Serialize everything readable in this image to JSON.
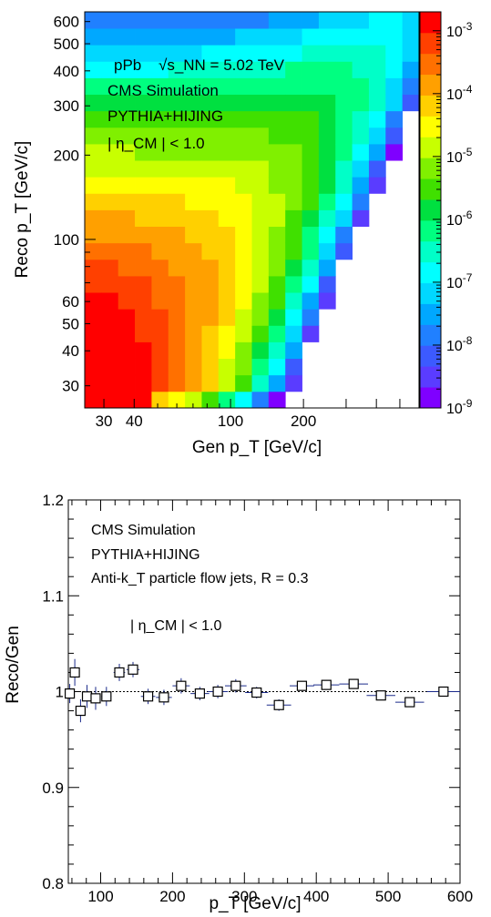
{
  "chart_data": [
    {
      "type": "heatmap",
      "xlabel": "Gen p_T [GeV/c]",
      "ylabel": "Reco p_T [GeV/c]",
      "xscale": "log",
      "yscale": "log",
      "xlim": [
        25,
        600
      ],
      "ylim": [
        25,
        650
      ],
      "x_ticks": [
        {
          "value": 30,
          "label": "30"
        },
        {
          "value": 40,
          "label": "40"
        },
        {
          "value": 100,
          "label": "100"
        },
        {
          "value": 200,
          "label": "200"
        }
      ],
      "y_ticks": [
        {
          "value": 30,
          "label": "30"
        },
        {
          "value": 40,
          "label": "40"
        },
        {
          "value": 50,
          "label": "50"
        },
        {
          "value": 60,
          "label": "60"
        },
        {
          "value": 100,
          "label": "100"
        },
        {
          "value": 200,
          "label": "200"
        },
        {
          "value": 300,
          "label": "300"
        },
        {
          "value": 400,
          "label": "400"
        },
        {
          "value": 500,
          "label": "500"
        },
        {
          "value": 600,
          "label": "600"
        }
      ],
      "colorbar": {
        "scale": "log",
        "range": [
          1e-09,
          0.002
        ],
        "ticks": [
          {
            "base": "10",
            "exp": "-3",
            "value": 0.001
          },
          {
            "base": "10",
            "exp": "-4",
            "value": 0.0001
          },
          {
            "base": "10",
            "exp": "-5",
            "value": 1e-05
          },
          {
            "base": "10",
            "exp": "-6",
            "value": 1e-06
          },
          {
            "base": "10",
            "exp": "-7",
            "value": 1e-07
          },
          {
            "base": "10",
            "exp": "-8",
            "value": 1e-08
          },
          {
            "base": "10",
            "exp": "-9",
            "value": 1e-09
          }
        ],
        "palette": [
          "#7f00ff",
          "#5a3cff",
          "#3c5aff",
          "#2080ff",
          "#00a8ff",
          "#00d8ff",
          "#00ffff",
          "#00ffc8",
          "#00ff80",
          "#00e040",
          "#40e000",
          "#80f000",
          "#c8ff00",
          "#ffff00",
          "#ffd000",
          "#ffa000",
          "#ff7000",
          "#ff4000",
          "#ff0000"
        ]
      },
      "annotations": [
        "pPb",
        "√s_NN = 5.02 TeV",
        "CMS Simulation",
        "PYTHIA+HIJING",
        "| η_CM | < 1.0"
      ]
    },
    {
      "type": "scatter",
      "xlabel": "p_T [GeV/c]",
      "ylabel": "Reco/Gen",
      "xlim": [
        55,
        600
      ],
      "ylim": [
        0.8,
        1.2
      ],
      "x_ticks": [
        100,
        200,
        300,
        400,
        500,
        600
      ],
      "y_ticks": [
        0.8,
        0.9,
        1.0,
        1.1,
        1.2
      ],
      "y_tick_labels": [
        "0.8",
        "0.9",
        "1",
        "1.1",
        "1.2"
      ],
      "reference_line": 1.0,
      "annotations": [
        "CMS Simulation",
        "PYTHIA+HIJING",
        "Anti-k_T particle flow jets, R = 0.3",
        "| η_CM | < 1.0"
      ],
      "points": [
        {
          "x": 57,
          "y": 0.998,
          "xerr": 3,
          "yerr": 0.01
        },
        {
          "x": 64,
          "y": 1.02,
          "xerr": 4,
          "yerr": 0.014
        },
        {
          "x": 72,
          "y": 0.98,
          "xerr": 4,
          "yerr": 0.012
        },
        {
          "x": 81,
          "y": 0.995,
          "xerr": 5,
          "yerr": 0.012
        },
        {
          "x": 93,
          "y": 0.993,
          "xerr": 6,
          "yerr": 0.012
        },
        {
          "x": 108,
          "y": 0.995,
          "xerr": 7,
          "yerr": 0.01
        },
        {
          "x": 126,
          "y": 1.02,
          "xerr": 8,
          "yerr": 0.009
        },
        {
          "x": 145,
          "y": 1.023,
          "xerr": 9,
          "yerr": 0.008
        },
        {
          "x": 166,
          "y": 0.995,
          "xerr": 10,
          "yerr": 0.008
        },
        {
          "x": 188,
          "y": 0.994,
          "xerr": 11,
          "yerr": 0.008
        },
        {
          "x": 212,
          "y": 1.006,
          "xerr": 12,
          "yerr": 0.008
        },
        {
          "x": 238,
          "y": 0.998,
          "xerr": 13,
          "yerr": 0.007
        },
        {
          "x": 263,
          "y": 1.0,
          "xerr": 14,
          "yerr": 0.007
        },
        {
          "x": 288,
          "y": 1.006,
          "xerr": 15,
          "yerr": 0.007
        },
        {
          "x": 317,
          "y": 0.999,
          "xerr": 16,
          "yerr": 0.006
        },
        {
          "x": 348,
          "y": 0.986,
          "xerr": 17,
          "yerr": 0.006
        },
        {
          "x": 380,
          "y": 1.006,
          "xerr": 17,
          "yerr": 0.005
        },
        {
          "x": 414,
          "y": 1.007,
          "xerr": 18,
          "yerr": 0.005
        },
        {
          "x": 452,
          "y": 1.008,
          "xerr": 20,
          "yerr": 0.005
        },
        {
          "x": 490,
          "y": 0.996,
          "xerr": 20,
          "yerr": 0.005
        },
        {
          "x": 530,
          "y": 0.989,
          "xerr": 20,
          "yerr": 0.005
        },
        {
          "x": 577,
          "y": 1.0,
          "xerr": 23,
          "yerr": 0.005
        }
      ]
    }
  ]
}
